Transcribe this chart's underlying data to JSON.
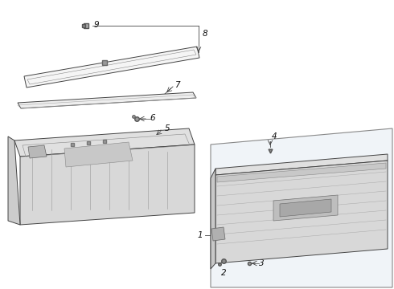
{
  "bg_color": "#ffffff",
  "line_color": "#444444",
  "label_color": "#111111",
  "fig_width": 4.9,
  "fig_height": 3.6,
  "dpi": 100,
  "lw": 0.7,
  "gray_fill": "#e8e8e8",
  "dark_gray": "#c0c0c0",
  "light_gray": "#f0f0f0"
}
